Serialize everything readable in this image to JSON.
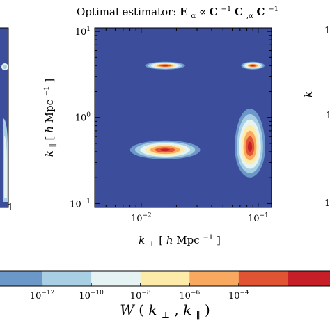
{
  "chart_data": {
    "type": "heatmap",
    "title": "Optimal estimator: Eα ∝ C⁻¹ C,α C⁻¹",
    "title_parts": {
      "prefix": "Optimal estimator: ",
      "E": "E",
      "alpha_sub": "α",
      "propto": " ∝ ",
      "C1": "C",
      "inv1": "−1",
      "C2": " C",
      "comma_alpha": ",α",
      "C3": "C",
      "inv3": "−1"
    },
    "xlabel": "k⊥ [hMpc⁻¹]",
    "xlabel_parts": {
      "k": "k",
      "sub": "⊥",
      "open": " [",
      "h": "h",
      "unit": "Mpc",
      "exp": "−1",
      "close": "]"
    },
    "ylabel": "k∥ [hMpc⁻¹]",
    "ylabel_parts": {
      "k": "k",
      "sub": "∥",
      "open": " [",
      "h": "h",
      "unit": "Mpc",
      "exp": "−1",
      "close": "]"
    },
    "x_scale": "log",
    "y_scale": "log",
    "xlim": [
      0.004,
      0.13
    ],
    "ylim": [
      0.09,
      11
    ],
    "x_ticks": [
      {
        "value": 0.01,
        "base": "10",
        "exp": "−2"
      },
      {
        "value": 0.1,
        "base": "10",
        "exp": "−1"
      }
    ],
    "y_ticks": [
      {
        "value": 0.1,
        "base": "10",
        "exp": "−1"
      },
      {
        "value": 1,
        "base": "10",
        "exp": "0"
      },
      {
        "value": 10,
        "base": "10",
        "exp": "1"
      }
    ],
    "background_color": "#3b4d9b",
    "levels": [
      {
        "color": "#3b4d9b",
        "max": 1e-13
      },
      {
        "color": "#6c98c9",
        "max": 1e-11
      },
      {
        "color": "#a9cfe5",
        "max": 1e-09
      },
      {
        "color": "#e6f3f3",
        "max": 1e-07
      },
      {
        "color": "#fdebaa",
        "max": 1e-05
      },
      {
        "color": "#f9a95f",
        "max": 0.0001
      },
      {
        "color": "#e05434",
        "max": 0.001
      },
      {
        "color": "#c71f27",
        "max": 0.01
      }
    ],
    "features": [
      {
        "name": "blob-upper-left",
        "center": [
          0.016,
          4.0
        ],
        "spread_log_x": [
          0.17,
          0.17
        ],
        "spread_log_y": [
          0.045,
          0.045
        ],
        "peak_level": 7
      },
      {
        "name": "blob-upper-right",
        "center": [
          0.09,
          4.0
        ],
        "spread_log_x": [
          0.1,
          0.1
        ],
        "spread_log_y": [
          0.045,
          0.045
        ],
        "peak_level": 7
      },
      {
        "name": "blob-lower-left",
        "center": [
          0.016,
          0.42
        ],
        "spread_log_x": [
          0.3,
          0.3
        ],
        "spread_log_y": [
          0.11,
          0.11
        ],
        "peak_level": 7
      },
      {
        "name": "blob-lower-right",
        "center": [
          0.085,
          0.45
        ],
        "spread_log_x": [
          0.13,
          0.13
        ],
        "spread_log_y": [
          0.45,
          0.35
        ],
        "peak_level": 7
      }
    ],
    "colorbar": {
      "label": "W(k⊥, k∥)",
      "label_parts": {
        "W": "W",
        "open": "(",
        "k1": "k",
        "sub1": "⊥",
        "comma": ",",
        "k2": "k",
        "sub2": "∥",
        "close": ")"
      },
      "ticks": [
        {
          "base": "10",
          "exp": "−12"
        },
        {
          "base": "10",
          "exp": "−10"
        },
        {
          "base": "10",
          "exp": "−8"
        },
        {
          "base": "10",
          "exp": "−6"
        },
        {
          "base": "10",
          "exp": "−4"
        }
      ]
    },
    "adjacent_panels": {
      "left": {
        "tick_fragment": "−1"
      },
      "right": {
        "tick_fragment_top": "1",
        "tick_fragment_mid": "1",
        "tick_fragment_bottom": "1",
        "ylabel_fragment": "k"
      }
    }
  }
}
